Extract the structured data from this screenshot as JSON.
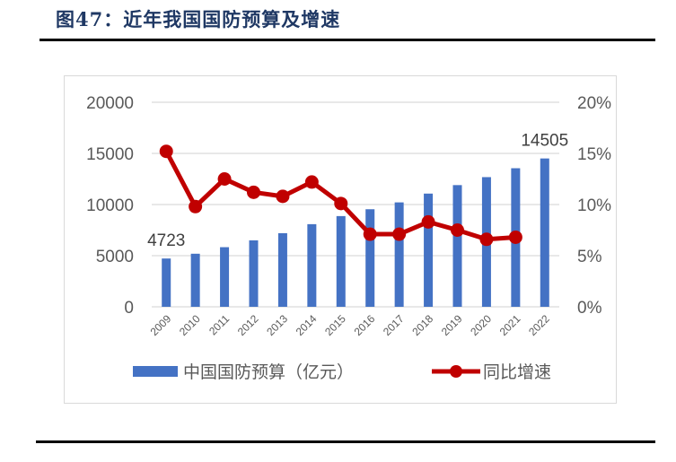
{
  "figure": {
    "title": "图47：近年我国国防预算及增速"
  },
  "chart_data": {
    "type": "bar+line",
    "title": "近年我国国防预算及增速",
    "categories": [
      "2009",
      "2010",
      "2011",
      "2012",
      "2013",
      "2014",
      "2015",
      "2016",
      "2017",
      "2018",
      "2019",
      "2020",
      "2021",
      "2022"
    ],
    "series": [
      {
        "name": "中国国防预算（亿元）",
        "type": "bar",
        "axis": "left",
        "color": "#4472c4",
        "values": [
          4723,
          5190,
          5830,
          6500,
          7200,
          8080,
          8870,
          9540,
          10210,
          11070,
          11900,
          12680,
          13550,
          14505
        ]
      },
      {
        "name": "同比增速",
        "type": "line",
        "axis": "right",
        "color": "#c00000",
        "marker": "circle",
        "values": [
          15.2,
          9.8,
          12.5,
          11.2,
          10.8,
          12.2,
          10.1,
          7.1,
          7.1,
          8.3,
          7.5,
          6.6,
          6.8,
          null
        ]
      }
    ],
    "data_labels": [
      {
        "category": "2009",
        "series": "中国国防预算（亿元）",
        "text": "4723"
      },
      {
        "category": "2022",
        "series": "中国国防预算（亿元）",
        "text": "14505"
      }
    ],
    "y_left": {
      "ticks": [
        "0",
        "5000",
        "10000",
        "15000",
        "20000"
      ],
      "range": [
        0,
        20000
      ]
    },
    "y_right": {
      "ticks": [
        "0%",
        "5%",
        "10%",
        "15%",
        "20%"
      ],
      "range": [
        0,
        20
      ]
    },
    "xlabel": "",
    "ylabel": "",
    "grid": true,
    "legend_position": "bottom"
  },
  "legend": {
    "bar_label": "中国国防预算（亿元）",
    "line_label": "同比增速"
  }
}
